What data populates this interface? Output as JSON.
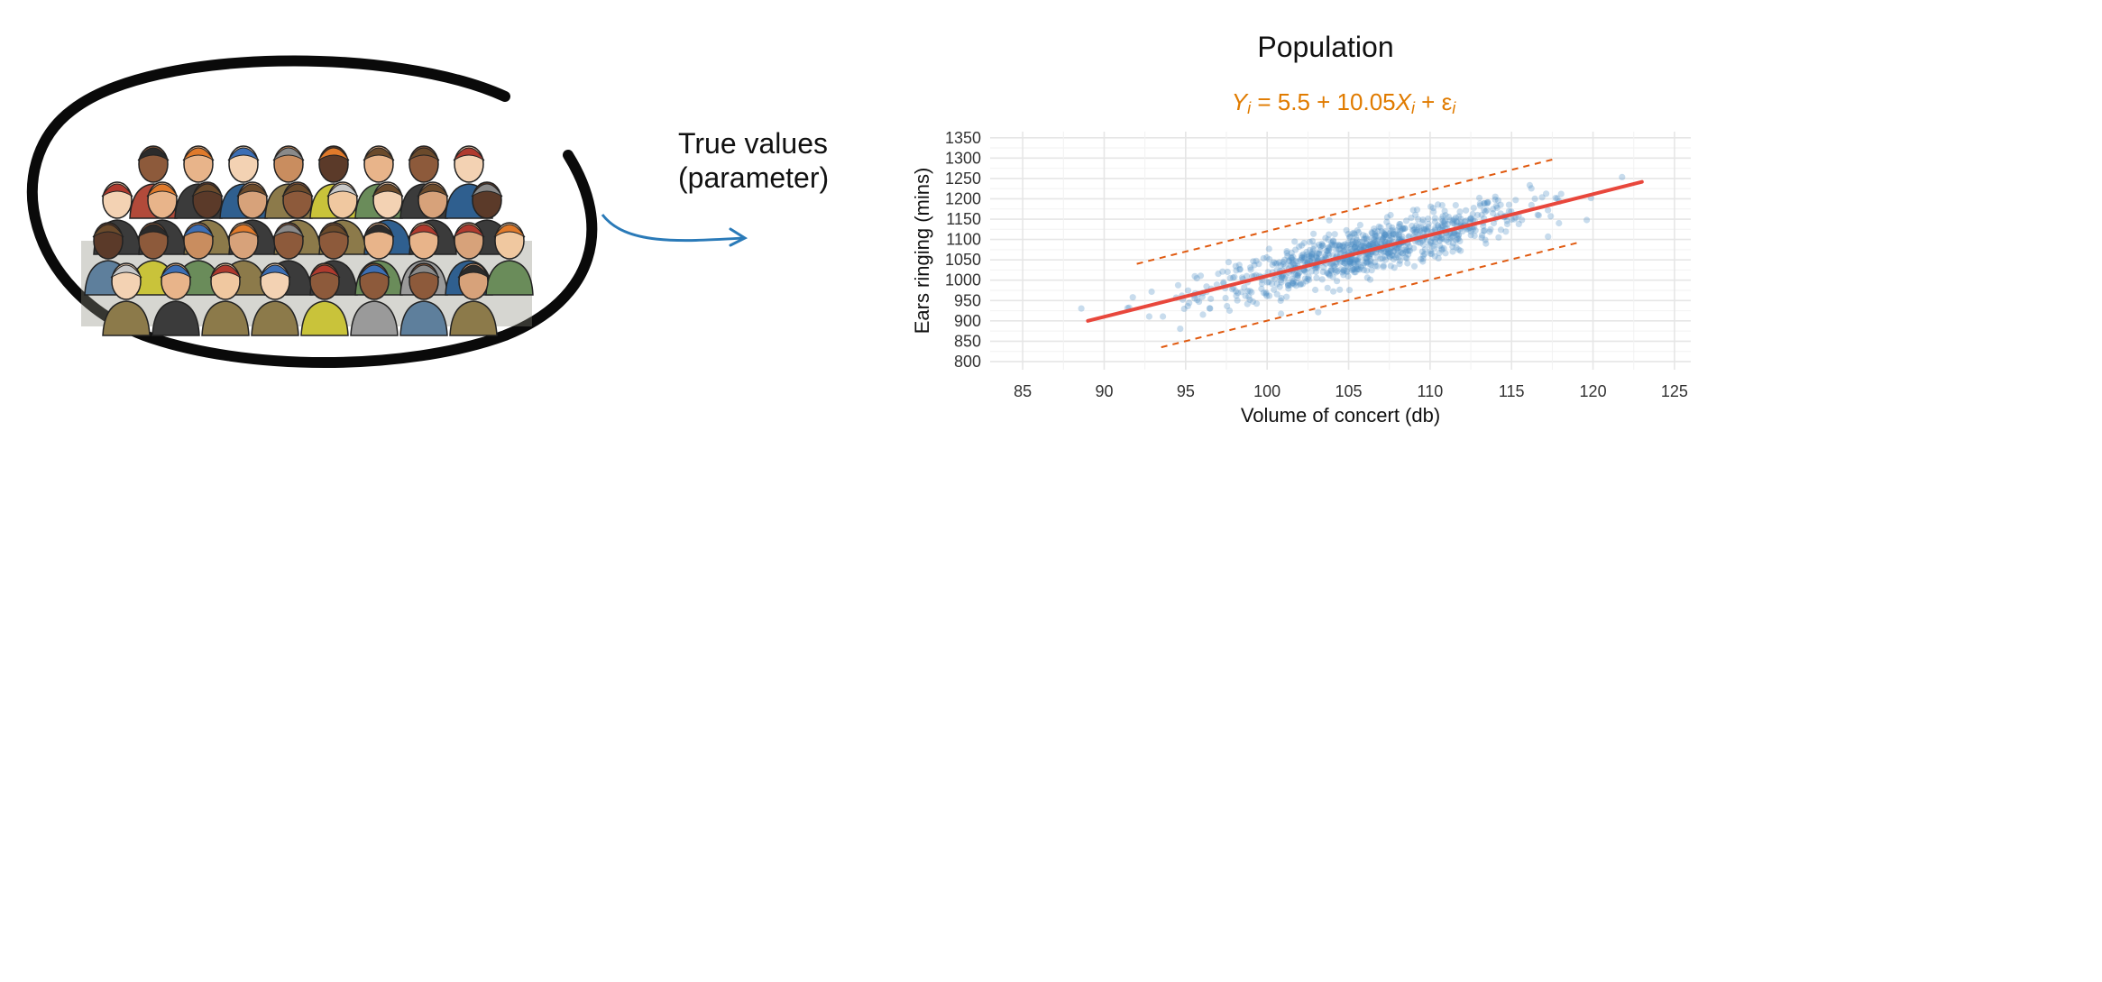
{
  "left_panel": {
    "label_line1": "True values",
    "label_line2": "(parameter)"
  },
  "chart_data": {
    "type": "scatter",
    "title": "Population",
    "equation": {
      "lhs": "Y",
      "sub": "i",
      "middle": " = 5.5 + 10.05",
      "x": "X",
      "plus": " + ε"
    },
    "xlabel": "Volume of concert (db)",
    "ylabel": "Ears ringing (mins)",
    "xlim": [
      83,
      126
    ],
    "ylim": [
      780,
      1365
    ],
    "xticks": [
      85,
      90,
      95,
      100,
      105,
      110,
      115,
      120,
      125
    ],
    "yticks": [
      800,
      850,
      900,
      950,
      1000,
      1050,
      1100,
      1150,
      1200,
      1250,
      1300,
      1350
    ],
    "grid": true,
    "regression": {
      "intercept": 5.5,
      "slope": 10.05,
      "x_range": [
        89,
        123
      ]
    },
    "prediction_band": {
      "lower_offset": -110,
      "upper_offset": 110,
      "x_range": [
        92,
        117.5
      ]
    },
    "scatter_cloud": {
      "x_mean": 106,
      "x_sd": 5.0,
      "residual_sd": 30,
      "approx_points": 900,
      "x_range": [
        88.5,
        123
      ]
    },
    "colors": {
      "points": "#4a8bc2",
      "line": "#e8473c",
      "band": "#e05a10",
      "equation": "#e07b00",
      "grid": "#e6e6e6"
    }
  }
}
